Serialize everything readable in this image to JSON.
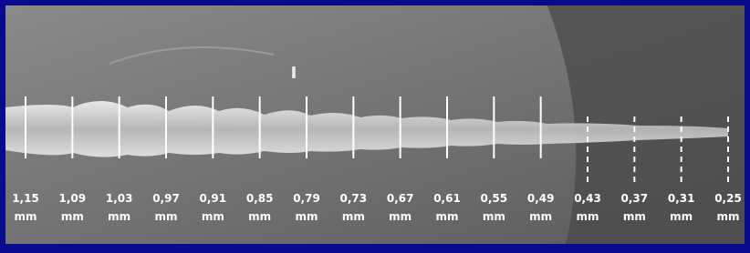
{
  "labels": [
    "1,15",
    "1,09",
    "1,03",
    "0,97",
    "0,91",
    "0,85",
    "0,79",
    "0,73",
    "0,67",
    "0,61",
    "0,55",
    "0,49",
    "0,43",
    "0,37",
    "0,31",
    "0,25"
  ],
  "unit": "mm"
}
